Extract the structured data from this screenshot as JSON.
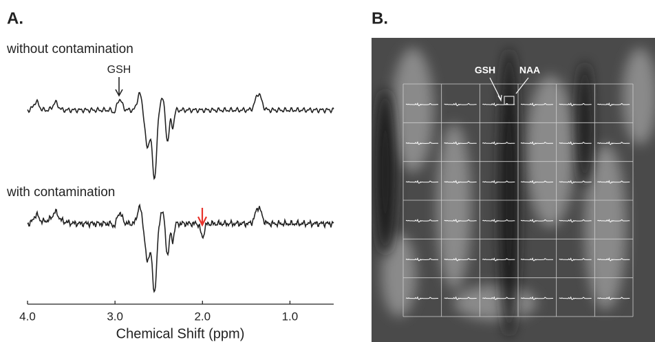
{
  "panels": [
    {
      "label": "A."
    },
    {
      "label": "B."
    }
  ],
  "axis": {
    "label": "Chemical Shift (ppm)",
    "xlim": [
      4.0,
      0.5
    ],
    "xticks": [
      {
        "value": 4,
        "label": "4.0"
      },
      {
        "value": 3,
        "label": "3.0"
      },
      {
        "value": 2,
        "label": "2.0"
      },
      {
        "value": 1,
        "label": "1.0"
      }
    ]
  },
  "spectra": [
    {
      "title": "without contamination",
      "annotation": "GSH"
    },
    {
      "title": "with contamination"
    }
  ],
  "panel_b": {
    "annotations": [
      "GSH",
      "NAA"
    ]
  }
}
